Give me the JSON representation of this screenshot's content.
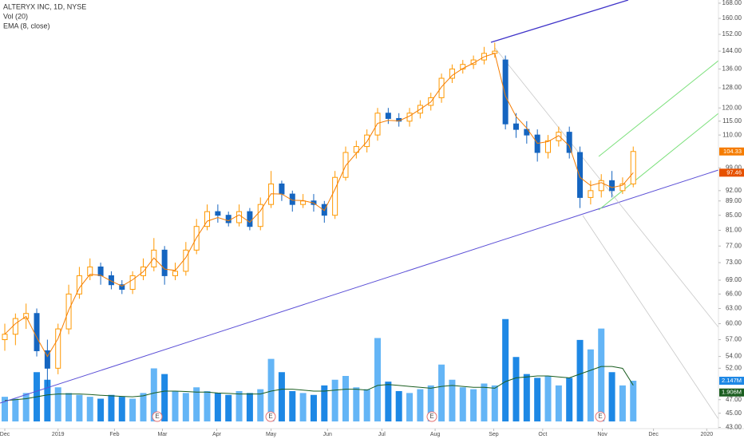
{
  "chart_data": {
    "type": "candlestick",
    "title": "ALTERYX INC, 1D, NYSE",
    "log_scale": true,
    "grid": false,
    "up_color": "#ff9800",
    "down_color": "#1565c0",
    "open": [
      57,
      58,
      61,
      62,
      55,
      52,
      59,
      66,
      70,
      72,
      70,
      68,
      67,
      70,
      72,
      76,
      70,
      71,
      76,
      82,
      86,
      85,
      83,
      86,
      82,
      88,
      94,
      91,
      88,
      89,
      88,
      85,
      96,
      104,
      106,
      110,
      118,
      116,
      115,
      118,
      121,
      124,
      132,
      136,
      138,
      140,
      143,
      140,
      114,
      112,
      110,
      104,
      108,
      111,
      104,
      90,
      92,
      95,
      92,
      94
    ],
    "high": [
      60,
      62,
      64,
      63,
      57,
      60,
      68,
      72,
      74,
      73,
      71,
      69,
      71,
      74,
      79,
      77,
      73,
      78,
      84,
      88,
      88,
      86,
      88,
      87,
      90,
      98,
      95,
      92,
      91,
      91,
      89,
      98,
      106,
      108,
      112,
      120,
      120,
      118,
      120,
      123,
      126,
      134,
      138,
      140,
      142,
      146,
      148,
      142,
      118,
      115,
      112,
      110,
      113,
      113,
      106,
      95,
      97,
      98,
      96,
      106
    ],
    "low": [
      55,
      56,
      59,
      54,
      49,
      51,
      58,
      65,
      69,
      68,
      67,
      66,
      66,
      69,
      71,
      68,
      69,
      70,
      75,
      81,
      83,
      82,
      82,
      81,
      81,
      87,
      89,
      86,
      87,
      86,
      83,
      84,
      95,
      102,
      104,
      108,
      114,
      113,
      113,
      116,
      119,
      122,
      130,
      134,
      136,
      138,
      141,
      112,
      109,
      107,
      101,
      102,
      106,
      102,
      87,
      88,
      90,
      90,
      91,
      93
    ],
    "close": [
      58,
      61,
      62,
      55,
      52,
      59,
      66,
      70,
      72,
      70,
      68,
      67,
      70,
      72,
      76,
      70,
      71,
      76,
      82,
      86,
      85,
      83,
      86,
      82,
      88,
      94,
      91,
      88,
      89,
      88,
      85,
      96,
      104,
      106,
      110,
      118,
      116,
      115,
      118,
      121,
      124,
      132,
      136,
      138,
      140,
      143,
      144,
      114,
      112,
      110,
      104,
      108,
      111,
      104,
      90,
      92,
      95,
      92,
      94,
      104.33
    ],
    "series": [
      {
        "name": "Vol (20)",
        "axis": "y2",
        "color": "#1e88e5",
        "up_color": "#64b5f6",
        "ma_color": "#1b5e20",
        "values": [
          1.3,
          1.2,
          1.5,
          2.6,
          2.2,
          1.8,
          1.5,
          1.4,
          1.3,
          1.2,
          1.4,
          1.3,
          1.2,
          1.5,
          2.8,
          2.5,
          1.6,
          1.5,
          1.8,
          1.6,
          1.5,
          1.4,
          1.6,
          1.5,
          1.7,
          3.3,
          2.6,
          1.6,
          1.5,
          1.4,
          1.9,
          2.2,
          2.4,
          1.8,
          1.7,
          4.4,
          2.1,
          1.6,
          1.5,
          1.7,
          1.9,
          3.0,
          2.2,
          1.8,
          1.7,
          2.0,
          1.9,
          5.4,
          3.4,
          2.5,
          2.3,
          2.4,
          1.9,
          2.3,
          4.3,
          3.8,
          4.9,
          2.6,
          1.9,
          2.147
        ],
        "value_labels": [
          null,
          null,
          null,
          null,
          null,
          null,
          null,
          null,
          null,
          null,
          null,
          null,
          null,
          null,
          null,
          null,
          null,
          null,
          null,
          null,
          null,
          null,
          null,
          null,
          null,
          null,
          null,
          null,
          null,
          null,
          null,
          null,
          null,
          null,
          null,
          null,
          null,
          null,
          null,
          null,
          null,
          null,
          null,
          null,
          null,
          null,
          null,
          null,
          null,
          null,
          null,
          null,
          null,
          null,
          null,
          null,
          null,
          null,
          null,
          "2.147M"
        ],
        "ma_values": [
          1.1,
          1.15,
          1.2,
          1.3,
          1.4,
          1.45,
          1.45,
          1.45,
          1.42,
          1.38,
          1.35,
          1.32,
          1.3,
          1.35,
          1.5,
          1.6,
          1.6,
          1.58,
          1.55,
          1.55,
          1.5,
          1.48,
          1.45,
          1.45,
          1.45,
          1.6,
          1.7,
          1.7,
          1.65,
          1.6,
          1.6,
          1.65,
          1.7,
          1.7,
          1.65,
          1.9,
          1.95,
          1.9,
          1.85,
          1.8,
          1.75,
          1.85,
          1.9,
          1.85,
          1.8,
          1.8,
          1.75,
          2.1,
          2.3,
          2.35,
          2.4,
          2.4,
          2.35,
          2.3,
          2.5,
          2.7,
          2.9,
          2.9,
          2.8,
          1.906
        ],
        "ma_value_labels": [
          null,
          null,
          null,
          null,
          null,
          null,
          null,
          null,
          null,
          null,
          null,
          null,
          null,
          null,
          null,
          null,
          null,
          null,
          null,
          null,
          null,
          null,
          null,
          null,
          null,
          null,
          null,
          null,
          null,
          null,
          null,
          null,
          null,
          null,
          null,
          null,
          null,
          null,
          null,
          null,
          null,
          null,
          null,
          null,
          null,
          null,
          null,
          null,
          null,
          null,
          null,
          null,
          null,
          null,
          null,
          null,
          null,
          null,
          null,
          "1.906M"
        ]
      },
      {
        "name": "EMA (8, close)",
        "color": "#f57c00",
        "values": [
          58,
          60,
          61.4,
          57.4,
          54,
          57.2,
          62.7,
          67.3,
          70.3,
          70.1,
          68.8,
          67.7,
          69.1,
          70.9,
          74.1,
          71.5,
          71.2,
          74.2,
          79.1,
          83.4,
          84.4,
          83.5,
          85.1,
          83.1,
          86.2,
          91.1,
          91,
          89.2,
          89.1,
          88.4,
          86.3,
          92.4,
          99.7,
          103.7,
          107.7,
          114.2,
          115.3,
          115.1,
          116.9,
          119.5,
          122.3,
          128.4,
          133.2,
          136.2,
          138.6,
          141.4,
          143.0,
          124.7,
          116.7,
          112.5,
          107.1,
          107.7,
          109.8,
          106.2,
          96,
          93.5,
          94.4,
          92.9,
          93.6,
          97.46
        ]
      }
    ],
    "xlim": [
      -0.45,
      67
    ],
    "xticks": [
      {
        "value": 0,
        "label": "Dec"
      },
      {
        "value": 5,
        "label": "2019"
      },
      {
        "value": 10.3,
        "label": "Feb"
      },
      {
        "value": 14.8,
        "label": "Mar"
      },
      {
        "value": 19.9,
        "label": "Apr"
      },
      {
        "value": 25,
        "label": "May"
      },
      {
        "value": 30.3,
        "label": "Jun"
      },
      {
        "value": 35.4,
        "label": "Jul"
      },
      {
        "value": 40.4,
        "label": "Aug"
      },
      {
        "value": 45.9,
        "label": "Sep"
      },
      {
        "value": 50.5,
        "label": "Oct"
      },
      {
        "value": 56.1,
        "label": "Nov"
      },
      {
        "value": 60.9,
        "label": "Dec"
      },
      {
        "value": 65.9,
        "label": "2020"
      }
    ],
    "ylim": [
      42.5,
      168
    ],
    "yticks": [
      {
        "value": 168,
        "label": "168.00"
      },
      {
        "value": 160,
        "label": "160.00"
      },
      {
        "value": 152,
        "label": "152.00"
      },
      {
        "value": 144,
        "label": "144.00"
      },
      {
        "value": 136,
        "label": "136.00"
      },
      {
        "value": 128,
        "label": "128.00"
      },
      {
        "value": 120,
        "label": "120.00"
      },
      {
        "value": 115,
        "label": "115.00"
      },
      {
        "value": 110,
        "label": "110.00"
      },
      {
        "value": 99,
        "label": "99.00"
      },
      {
        "value": 92,
        "label": "92.00"
      },
      {
        "value": 89,
        "label": "89.00"
      },
      {
        "value": 85,
        "label": "85.00"
      },
      {
        "value": 81,
        "label": "81.00"
      },
      {
        "value": 77,
        "label": "77.00"
      },
      {
        "value": 73,
        "label": "73.00"
      },
      {
        "value": 69,
        "label": "69.00"
      },
      {
        "value": 66,
        "label": "66.00"
      },
      {
        "value": 63,
        "label": "63.00"
      },
      {
        "value": 60,
        "label": "60.00"
      },
      {
        "value": 57,
        "label": "57.00"
      },
      {
        "value": 54,
        "label": "54.00"
      },
      {
        "value": 52,
        "label": "52.00"
      },
      {
        "value": 47,
        "label": "47.00"
      },
      {
        "value": 45,
        "label": "45.00"
      },
      {
        "value": 43,
        "label": "43.00"
      }
    ],
    "y2lim": [
      0,
      12
    ]
  },
  "earnings": [
    "E",
    "E",
    "E",
    "E"
  ]
}
